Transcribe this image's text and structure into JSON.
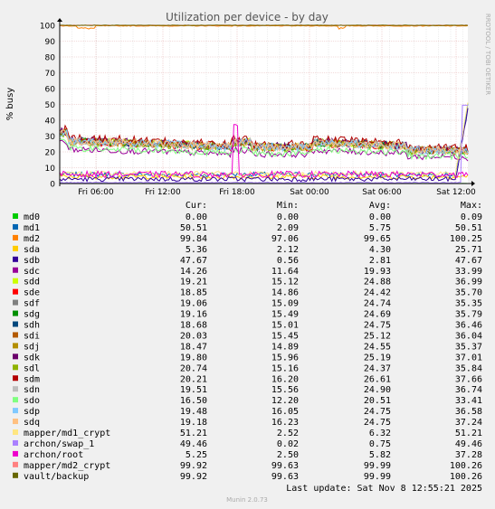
{
  "side_label": "RRDTOOL / TOBI OETIKER",
  "footer": "Munin 2.0.73",
  "last_update": "Last update: Sat Nov  8 12:55:21 2025",
  "legend_headers": [
    "Cur:",
    "Min:",
    "Avg:",
    "Max:"
  ],
  "colors": {
    "background": "#f0f0f0",
    "plot_bg": "#ffffff",
    "grid_major": "#e6b8b8",
    "grid_minor": "#dcdcdc",
    "axis": "#000000",
    "text": "#000000",
    "title": "#555555"
  },
  "chart_data": {
    "type": "line",
    "title": "Utilization per device - by day",
    "ylabel": "% busy",
    "xlabel": "",
    "ylim": [
      0,
      100
    ],
    "yticks": [
      0,
      10,
      20,
      30,
      40,
      50,
      60,
      70,
      80,
      90,
      100
    ],
    "xlim": [
      "Fri 03:30",
      "Sat 12:55"
    ],
    "xticks": [
      "Fri 06:00",
      "Fri 12:00",
      "Fri 18:00",
      "Sat 00:00",
      "Sat 06:00",
      "Sat 12:00"
    ],
    "grid": true,
    "legend_position": "below",
    "series": [
      {
        "name": "md0",
        "color": "#00cc00",
        "cur": "0.00",
        "min": "0.00",
        "avg": "0.00",
        "max": "0.09",
        "profile": "zero"
      },
      {
        "name": "md1",
        "color": "#0066b3",
        "cur": "50.51",
        "min": "2.09",
        "avg": "5.75",
        "max": "50.51",
        "profile": "low_spike"
      },
      {
        "name": "md2",
        "color": "#ff8000",
        "cur": "99.84",
        "min": "97.06",
        "avg": "99.65",
        "max": "100.25",
        "profile": "top_dip"
      },
      {
        "name": "sda",
        "color": "#ffcc00",
        "cur": "5.36",
        "min": "2.12",
        "avg": "4.30",
        "max": "25.71",
        "profile": "low"
      },
      {
        "name": "sdb",
        "color": "#330099",
        "cur": "47.67",
        "min": "0.56",
        "avg": "2.81",
        "max": "47.67",
        "profile": "low_spike"
      },
      {
        "name": "sdc",
        "color": "#990099",
        "cur": "14.26",
        "min": "11.64",
        "avg": "19.93",
        "max": "33.99",
        "profile": "band_low"
      },
      {
        "name": "sdd",
        "color": "#ccff00",
        "cur": "19.21",
        "min": "15.12",
        "avg": "24.88",
        "max": "36.99",
        "profile": "band"
      },
      {
        "name": "sde",
        "color": "#ff0000",
        "cur": "18.85",
        "min": "14.86",
        "avg": "24.42",
        "max": "35.70",
        "profile": "band"
      },
      {
        "name": "sdf",
        "color": "#808080",
        "cur": "19.06",
        "min": "15.09",
        "avg": "24.74",
        "max": "35.35",
        "profile": "band"
      },
      {
        "name": "sdg",
        "color": "#008f00",
        "cur": "19.16",
        "min": "15.49",
        "avg": "24.69",
        "max": "35.79",
        "profile": "band"
      },
      {
        "name": "sdh",
        "color": "#00487d",
        "cur": "18.68",
        "min": "15.01",
        "avg": "24.75",
        "max": "36.46",
        "profile": "band"
      },
      {
        "name": "sdi",
        "color": "#b35a00",
        "cur": "20.03",
        "min": "15.45",
        "avg": "25.12",
        "max": "36.04",
        "profile": "band"
      },
      {
        "name": "sdj",
        "color": "#b38f00",
        "cur": "18.47",
        "min": "14.89",
        "avg": "24.55",
        "max": "35.37",
        "profile": "band"
      },
      {
        "name": "sdk",
        "color": "#6b006b",
        "cur": "19.80",
        "min": "15.96",
        "avg": "25.19",
        "max": "37.01",
        "profile": "band"
      },
      {
        "name": "sdl",
        "color": "#8fb300",
        "cur": "20.74",
        "min": "15.16",
        "avg": "24.37",
        "max": "35.84",
        "profile": "band"
      },
      {
        "name": "sdm",
        "color": "#b30000",
        "cur": "20.21",
        "min": "16.20",
        "avg": "26.61",
        "max": "37.66",
        "profile": "band"
      },
      {
        "name": "sdn",
        "color": "#bebebe",
        "cur": "19.51",
        "min": "15.56",
        "avg": "24.90",
        "max": "36.74",
        "profile": "band"
      },
      {
        "name": "sdo",
        "color": "#80ff80",
        "cur": "16.50",
        "min": "12.20",
        "avg": "20.51",
        "max": "33.41",
        "profile": "band_low"
      },
      {
        "name": "sdp",
        "color": "#80c9ff",
        "cur": "19.48",
        "min": "16.05",
        "avg": "24.75",
        "max": "36.58",
        "profile": "band"
      },
      {
        "name": "sdq",
        "color": "#ffc080",
        "cur": "19.18",
        "min": "16.23",
        "avg": "24.75",
        "max": "37.24",
        "profile": "band"
      },
      {
        "name": "mapper/md1_crypt",
        "color": "#ffe680",
        "cur": "51.21",
        "min": "2.52",
        "avg": "6.32",
        "max": "51.21",
        "profile": "low_spike"
      },
      {
        "name": "archon/swap_1",
        "color": "#aa80ff",
        "cur": "49.46",
        "min": "0.02",
        "avg": "0.75",
        "max": "49.46",
        "profile": "zero_spike"
      },
      {
        "name": "archon/root",
        "color": "#ee00cc",
        "cur": "5.25",
        "min": "2.50",
        "avg": "5.82",
        "max": "37.28",
        "profile": "low_root"
      },
      {
        "name": "mapper/md2_crypt",
        "color": "#ff8080",
        "cur": "99.92",
        "min": "99.63",
        "avg": "99.99",
        "max": "100.26",
        "profile": "top"
      },
      {
        "name": "vault/backup",
        "color": "#666600",
        "cur": "99.92",
        "min": "99.63",
        "avg": "99.99",
        "max": "100.26",
        "profile": "top"
      }
    ]
  }
}
